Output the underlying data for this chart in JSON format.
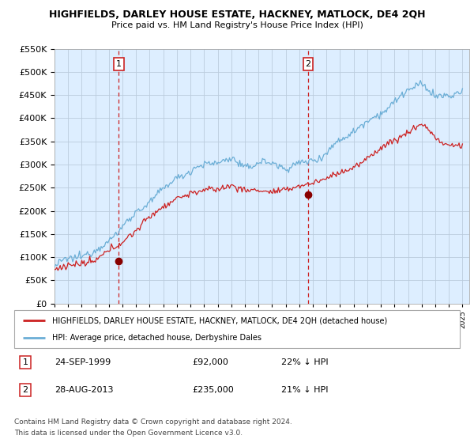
{
  "title": "HIGHFIELDS, DARLEY HOUSE ESTATE, HACKNEY, MATLOCK, DE4 2QH",
  "subtitle": "Price paid vs. HM Land Registry's House Price Index (HPI)",
  "legend_line1": "HIGHFIELDS, DARLEY HOUSE ESTATE, HACKNEY, MATLOCK, DE4 2QH (detached house)",
  "legend_line2": "HPI: Average price, detached house, Derbyshire Dales",
  "footer1": "Contains HM Land Registry data © Crown copyright and database right 2024.",
  "footer2": "This data is licensed under the Open Government Licence v3.0.",
  "annotation1": {
    "num": "1",
    "date": "24-SEP-1999",
    "price": "£92,000",
    "pct": "22% ↓ HPI"
  },
  "annotation2": {
    "num": "2",
    "date": "28-AUG-2013",
    "price": "£235,000",
    "pct": "21% ↓ HPI"
  },
  "vline1_x": 1999.73,
  "vline2_x": 2013.65,
  "point1_x": 1999.73,
  "point1_y": 92000,
  "point2_x": 2013.65,
  "point2_y": 235000,
  "ylim": [
    0,
    550000
  ],
  "xlim_start": 1995.0,
  "xlim_end": 2025.5,
  "hpi_color": "#6baed6",
  "price_color": "#cc2222",
  "vline_color": "#cc2222",
  "chart_bg": "#ddeeff",
  "background_color": "#ffffff",
  "grid_color": "#bbccdd"
}
